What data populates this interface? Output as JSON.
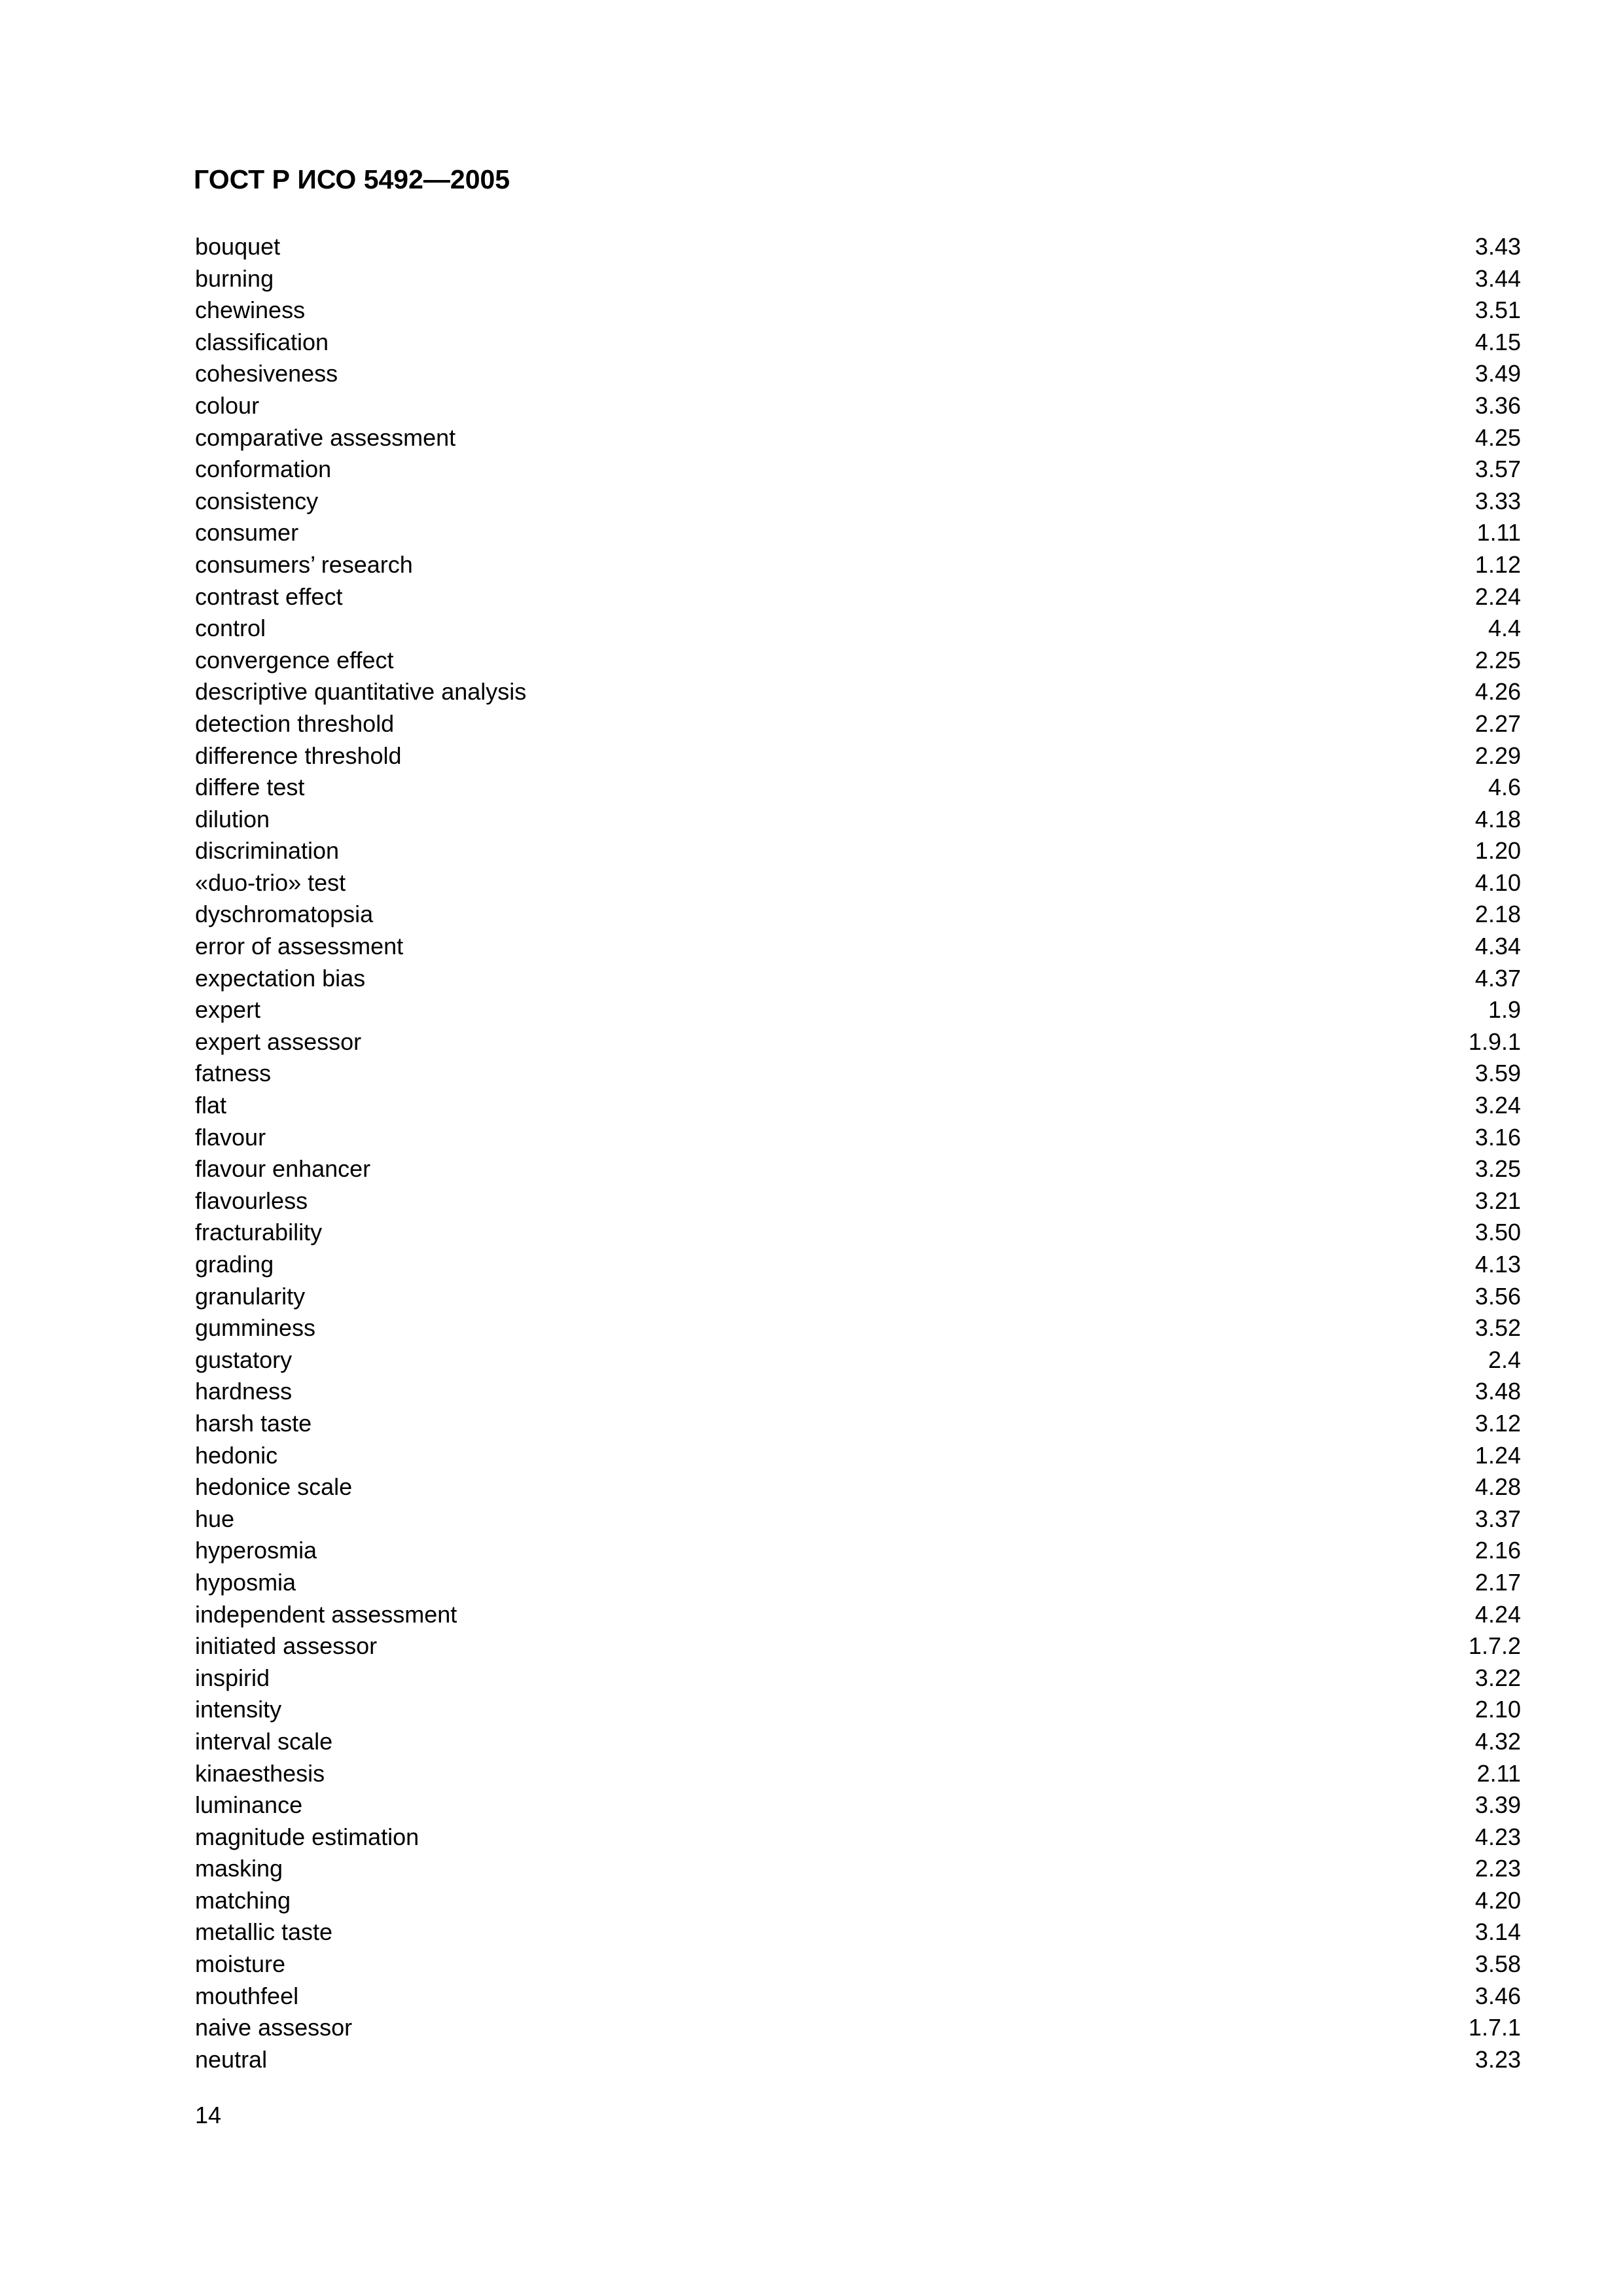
{
  "header": {
    "title": "ГОСТ Р ИСО 5492—2005"
  },
  "entries": [
    {
      "term": "bouquet",
      "ref": "3.43"
    },
    {
      "term": "burning",
      "ref": "3.44"
    },
    {
      "term": "chewiness",
      "ref": "3.51"
    },
    {
      "term": "classification",
      "ref": "4.15"
    },
    {
      "term": "cohesiveness",
      "ref": "3.49"
    },
    {
      "term": "colour",
      "ref": "3.36"
    },
    {
      "term": "comparative assessment",
      "ref": "4.25"
    },
    {
      "term": "conformation",
      "ref": "3.57"
    },
    {
      "term": "consistency",
      "ref": "3.33"
    },
    {
      "term": "consumer",
      "ref": "1.11"
    },
    {
      "term": "consumers’ research",
      "ref": "1.12"
    },
    {
      "term": "contrast effect",
      "ref": "2.24"
    },
    {
      "term": "control",
      "ref": "4.4"
    },
    {
      "term": "convergence effect",
      "ref": "2.25"
    },
    {
      "term": "descriptive quantitative analysis",
      "ref": "4.26"
    },
    {
      "term": "detection threshold",
      "ref": "2.27"
    },
    {
      "term": "difference threshold",
      "ref": "2.29"
    },
    {
      "term": "differe test",
      "ref": "4.6"
    },
    {
      "term": "dilution",
      "ref": "4.18"
    },
    {
      "term": "discrimination",
      "ref": "1.20"
    },
    {
      "term": "«duo-trio» test",
      "ref": "4.10"
    },
    {
      "term": "dyschromatopsia",
      "ref": "2.18"
    },
    {
      "term": "error of assessment",
      "ref": "4.34"
    },
    {
      "term": "expectation bias",
      "ref": "4.37"
    },
    {
      "term": "expert",
      "ref": "1.9"
    },
    {
      "term": "expert assessor",
      "ref": "1.9.1"
    },
    {
      "term": "fatness",
      "ref": "3.59"
    },
    {
      "term": "flat",
      "ref": "3.24"
    },
    {
      "term": "flavour",
      "ref": "3.16"
    },
    {
      "term": "flavour enhancer",
      "ref": "3.25"
    },
    {
      "term": "flavourless",
      "ref": "3.21"
    },
    {
      "term": "fracturability",
      "ref": "3.50"
    },
    {
      "term": "grading",
      "ref": "4.13"
    },
    {
      "term": "granularity",
      "ref": "3.56"
    },
    {
      "term": "gumminess",
      "ref": "3.52"
    },
    {
      "term": "gustatory",
      "ref": "2.4"
    },
    {
      "term": "hardness",
      "ref": "3.48"
    },
    {
      "term": "harsh taste",
      "ref": "3.12"
    },
    {
      "term": "hedonic",
      "ref": "1.24"
    },
    {
      "term": "hedonice scale",
      "ref": "4.28"
    },
    {
      "term": "hue",
      "ref": "3.37"
    },
    {
      "term": "hyperosmia",
      "ref": "2.16"
    },
    {
      "term": "hyposmia",
      "ref": "2.17"
    },
    {
      "term": "independent assessment",
      "ref": "4.24"
    },
    {
      "term": "initiated assessor",
      "ref": "1.7.2"
    },
    {
      "term": "inspirid",
      "ref": "3.22"
    },
    {
      "term": "intensity",
      "ref": "2.10"
    },
    {
      "term": "interval scale",
      "ref": "4.32"
    },
    {
      "term": "kinaesthesis",
      "ref": "2.11"
    },
    {
      "term": "luminance",
      "ref": "3.39"
    },
    {
      "term": "magnitude estimation",
      "ref": "4.23"
    },
    {
      "term": "masking",
      "ref": "2.23"
    },
    {
      "term": "matching",
      "ref": "4.20"
    },
    {
      "term": "metallic taste",
      "ref": "3.14"
    },
    {
      "term": "moisture",
      "ref": "3.58"
    },
    {
      "term": "mouthfeel",
      "ref": "3.46"
    },
    {
      "term": "naive assessor",
      "ref": "1.7.1"
    },
    {
      "term": "neutral",
      "ref": "3.23"
    }
  ],
  "footer": {
    "page_number": "14"
  }
}
